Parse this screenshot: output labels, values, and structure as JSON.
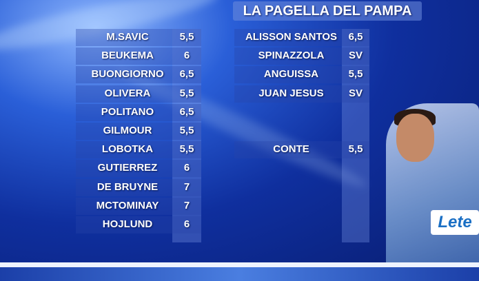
{
  "title": "LA PAGELLA DEL PAMPA",
  "left": [
    {
      "name": "M.SAVIC",
      "score": "5,5"
    },
    {
      "name": "BEUKEMA",
      "score": "6"
    },
    {
      "name": "BUONGIORNO",
      "score": "6,5"
    },
    {
      "name": "OLIVERA",
      "score": "5,5"
    },
    {
      "name": "POLITANO",
      "score": "6,5"
    },
    {
      "name": "GILMOUR",
      "score": "5,5"
    },
    {
      "name": "LOBOTKA",
      "score": "5,5"
    },
    {
      "name": "GUTIERREZ",
      "score": "6"
    },
    {
      "name": "DE BRUYNE",
      "score": "7"
    },
    {
      "name": "MCTOMINAY",
      "score": "7"
    },
    {
      "name": "HOJLUND",
      "score": "6"
    }
  ],
  "right": [
    {
      "name": "ALISSON SANTOS",
      "score": "6,5"
    },
    {
      "name": "SPINAZZOLA",
      "score": "SV"
    },
    {
      "name": "ANGUISSA",
      "score": "5,5"
    },
    {
      "name": "JUAN JESUS",
      "score": "SV"
    }
  ],
  "coach": {
    "name": "CONTE",
    "score": "5,5"
  },
  "sponsor": "Lete"
}
